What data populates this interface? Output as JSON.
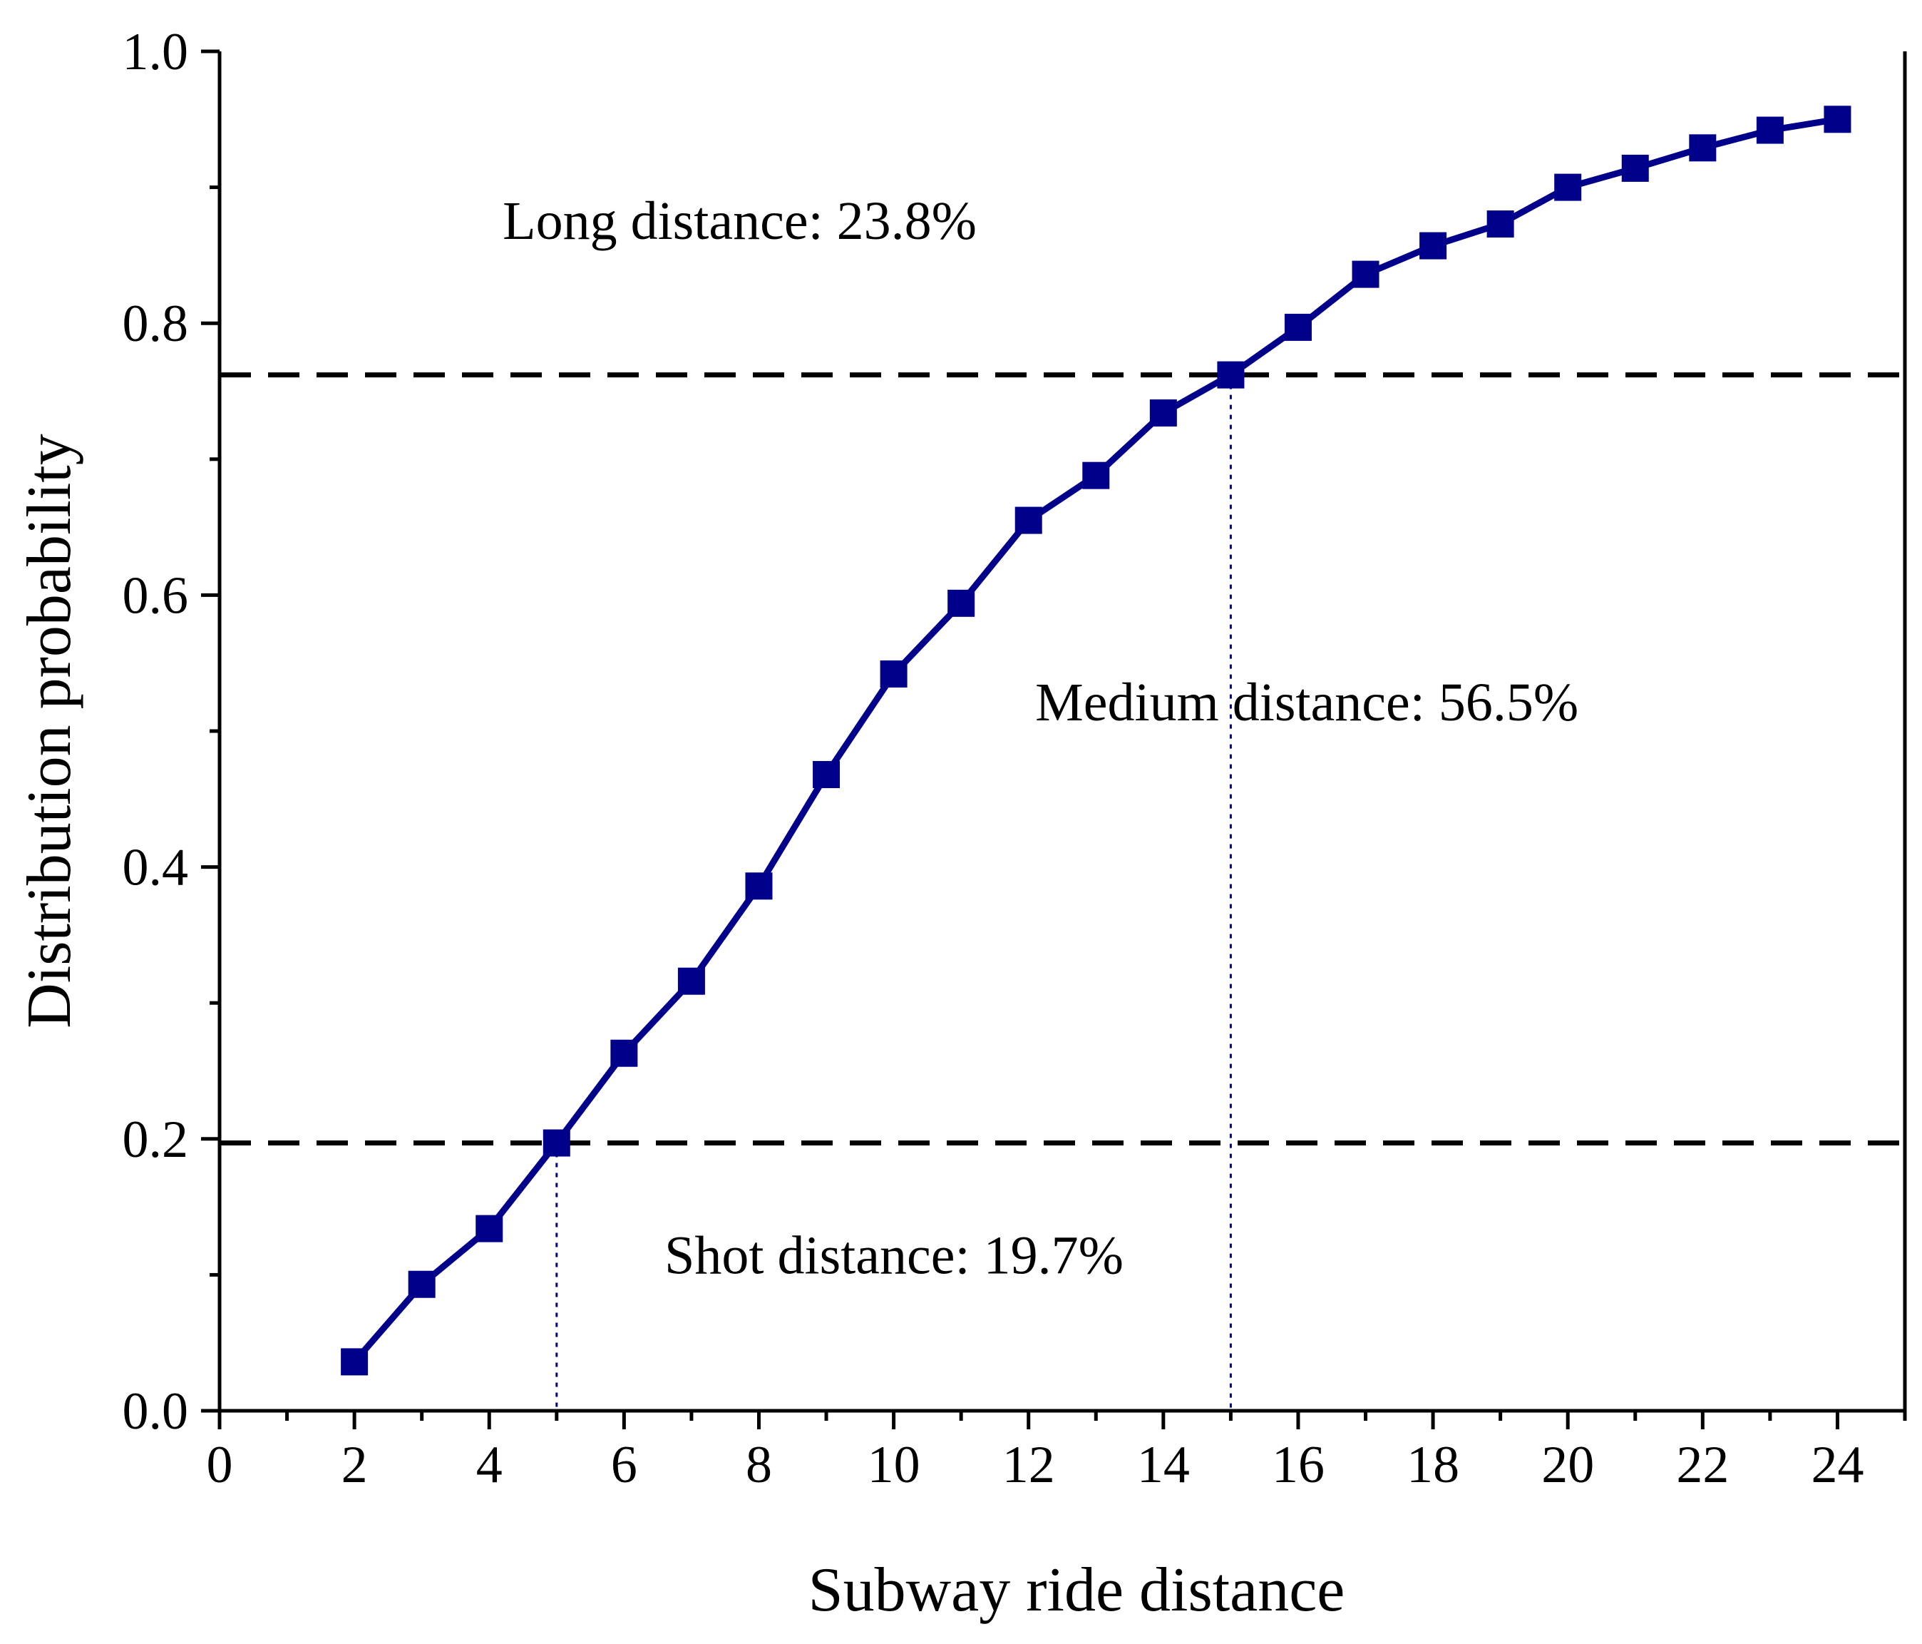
{
  "chart_data": {
    "type": "line",
    "title": "",
    "xlabel": "Subway ride distance",
    "ylabel": "Distribution probability",
    "xlim": [
      0,
      25
    ],
    "ylim": [
      0.0,
      1.0
    ],
    "x_ticks": [
      0,
      2,
      4,
      6,
      8,
      10,
      12,
      14,
      16,
      18,
      20,
      22,
      24
    ],
    "x_tick_labels": [
      "0",
      "2",
      "4",
      "6",
      "8",
      "10",
      "12",
      "14",
      "16",
      "18",
      "20",
      "22",
      "24"
    ],
    "y_ticks": [
      0.0,
      0.2,
      0.4,
      0.6,
      0.8,
      1.0
    ],
    "y_tick_labels": [
      "0.0",
      "0.2",
      "0.4",
      "0.6",
      "0.8",
      "1.0"
    ],
    "grid": false,
    "series": [
      {
        "name": "Distribution probability",
        "color": "#00008B",
        "marker": "square",
        "x": [
          2,
          3,
          4,
          5,
          6,
          7,
          8,
          9,
          10,
          11,
          12,
          13,
          14,
          15,
          16,
          17,
          18,
          19,
          20,
          21,
          22,
          23,
          24
        ],
        "y": [
          0.036,
          0.093,
          0.134,
          0.197,
          0.263,
          0.316,
          0.386,
          0.468,
          0.542,
          0.594,
          0.655,
          0.688,
          0.734,
          0.762,
          0.797,
          0.836,
          0.857,
          0.873,
          0.9,
          0.914,
          0.929,
          0.942,
          0.95
        ]
      }
    ],
    "threshold_lines": [
      {
        "y": 0.197,
        "style": "dashed",
        "color": "#000000"
      },
      {
        "y": 0.762,
        "style": "dashed",
        "color": "#000000"
      }
    ],
    "drop_lines": [
      {
        "x": 5,
        "y": 0.197,
        "style": "dotted",
        "color": "#00008B"
      },
      {
        "x": 15,
        "y": 0.762,
        "style": "dotted",
        "color": "#00008B"
      }
    ],
    "annotations": [
      {
        "text": "Long distance: 23.8%",
        "x": 4.2,
        "y": 0.862
      },
      {
        "text": "Medium distance: 56.5%",
        "x": 12.1,
        "y": 0.508
      },
      {
        "text": "Shot distance: 19.7%",
        "x": 6.6,
        "y": 0.101
      }
    ]
  }
}
